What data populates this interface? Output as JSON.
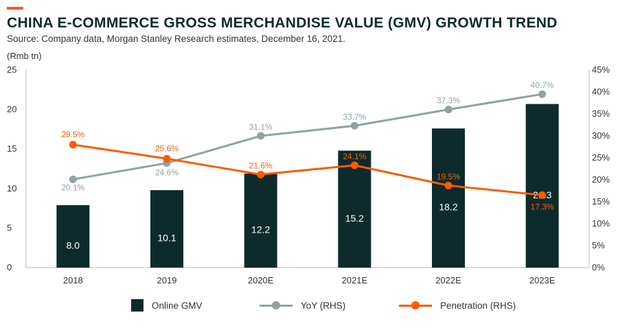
{
  "header": {
    "title": "CHINA E-COMMERCE GROSS MERCHANDISE VALUE (GMV) GROWTH TREND",
    "source": "Source: Company data, Morgan Stanley Research estimates, December 16, 2021.",
    "unit": "(Rmb tn)"
  },
  "colors": {
    "accent": "#ff5a00",
    "bar": "#0d2b2b",
    "yoy": "#8fa3a3",
    "penetration": "#ff5a00",
    "text": "#333333"
  },
  "legend": {
    "gmv": "Online GMV",
    "yoy": "YoY (RHS)",
    "penetration": "Penetration (RHS)"
  },
  "chart_data": {
    "type": "bar",
    "categories": [
      "2018",
      "2019",
      "2020E",
      "2021E",
      "2022E",
      "2023E"
    ],
    "series": [
      {
        "name": "Online GMV",
        "type": "bar",
        "axis": "left",
        "values": [
          8.0,
          10.1,
          12.2,
          15.2,
          18.2,
          21.3
        ],
        "labels": [
          "8.0",
          "10.1",
          "12.2",
          "15.2",
          "18.2",
          "21.3"
        ],
        "drawn_heights": [
          7.9,
          9.8,
          11.9,
          14.8,
          17.6,
          20.7
        ]
      },
      {
        "name": "YoY (RHS)",
        "type": "line",
        "axis": "right",
        "values": [
          20.1,
          24.6,
          31.1,
          33.7,
          37.3,
          40.7
        ],
        "labels": [
          "20.1%",
          "24.6%",
          "31.1%",
          "33.7%",
          "37.3%",
          "40.7%"
        ],
        "drawn_values": [
          20.1,
          23.8,
          30.0,
          32.3,
          36.0,
          39.5
        ]
      },
      {
        "name": "Penetration (RHS)",
        "type": "line",
        "axis": "right",
        "values": [
          29.5,
          25.6,
          21.6,
          24.1,
          19.5,
          17.3
        ],
        "labels": [
          "29.5%",
          "25.6%",
          "21.6%",
          "24.1%",
          "19.5%",
          "17.3%"
        ],
        "drawn_values": [
          28.0,
          24.8,
          21.2,
          23.3,
          18.7,
          16.5
        ]
      }
    ],
    "y_left": {
      "ylim": [
        0,
        25
      ],
      "ticks": [
        0,
        5,
        10,
        15,
        20,
        25
      ],
      "tick_labels": [
        "0",
        "5",
        "10",
        "15",
        "20",
        "25"
      ]
    },
    "y_right": {
      "ylim": [
        0,
        45
      ],
      "ticks": [
        0,
        5,
        10,
        15,
        20,
        25,
        30,
        35,
        40,
        45
      ],
      "tick_labels": [
        "0%",
        "5%",
        "10%",
        "15%",
        "20%",
        "25%",
        "30%",
        "35%",
        "40%",
        "45%"
      ]
    },
    "grid": false,
    "legend_position": "bottom"
  }
}
